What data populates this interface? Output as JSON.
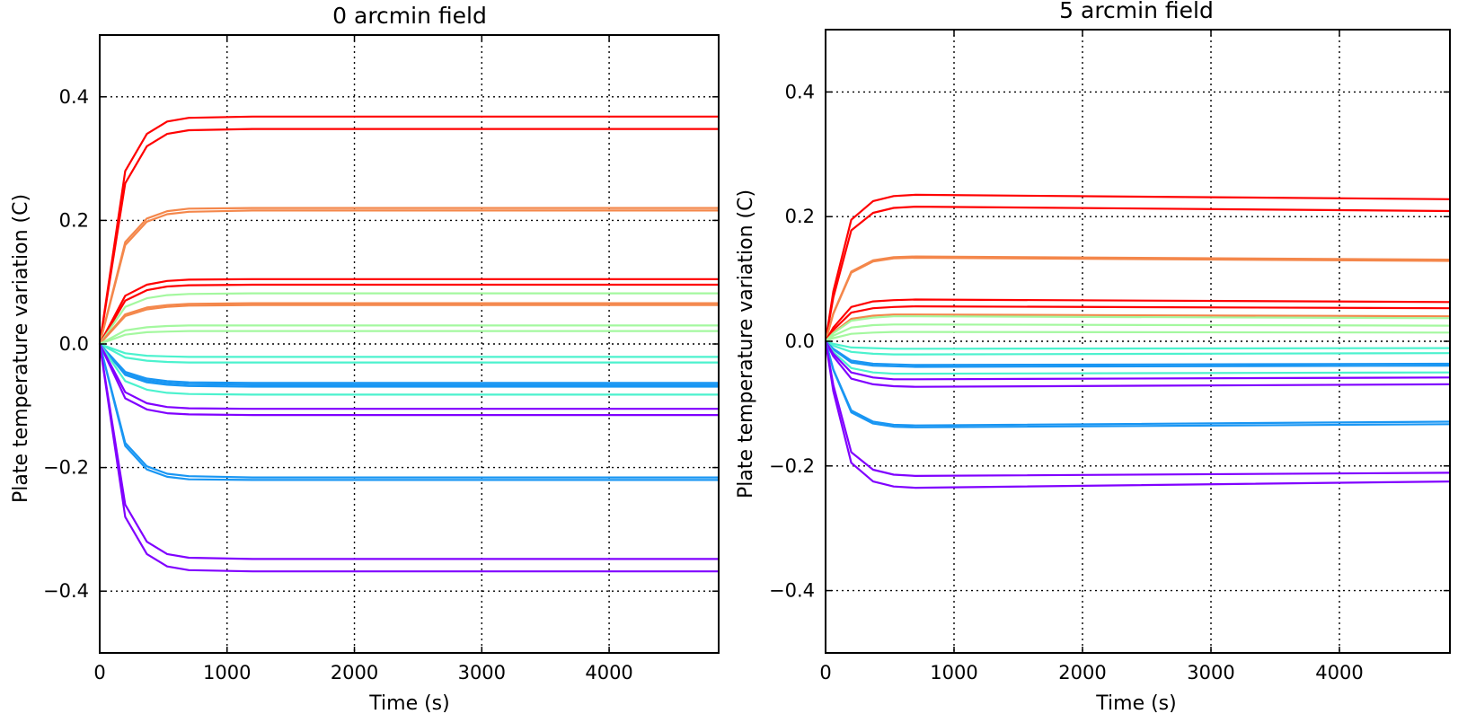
{
  "chart_data": [
    {
      "type": "line",
      "title": "0 arcmin field",
      "xlabel": "Time (s)",
      "ylabel": "Plate temperature variation (C)",
      "xlim": [
        0,
        4860
      ],
      "ylim": [
        -0.5,
        0.5
      ],
      "xticks": [
        0,
        1000,
        2000,
        3000,
        4000
      ],
      "xtick_labels": [
        "0",
        "1000",
        "2000",
        "3000",
        "4000"
      ],
      "yticks": [
        -0.4,
        -0.2,
        0.0,
        0.2,
        0.4
      ],
      "ytick_labels": [
        "−0.4",
        "−0.2",
        "0.0",
        "0.2",
        "0.4"
      ],
      "grid": true,
      "series": [
        {
          "color": "#ff0000",
          "x": [
            0,
            200,
            370,
            530,
            700,
            1200,
            4860
          ],
          "y": [
            0,
            0.28,
            0.34,
            0.36,
            0.366,
            0.368,
            0.368
          ]
        },
        {
          "color": "#ff0000",
          "x": [
            0,
            200,
            370,
            530,
            700,
            1200,
            4860
          ],
          "y": [
            0,
            0.26,
            0.32,
            0.34,
            0.346,
            0.348,
            0.348
          ]
        },
        {
          "color": "#f4874b",
          "x": [
            0,
            200,
            370,
            530,
            700,
            1200,
            4860
          ],
          "y": [
            0,
            0.165,
            0.203,
            0.215,
            0.219,
            0.22,
            0.22
          ]
        },
        {
          "color": "#f4874b",
          "x": [
            0,
            200,
            370,
            530,
            700,
            1200,
            4860
          ],
          "y": [
            0,
            0.16,
            0.198,
            0.21,
            0.214,
            0.216,
            0.216
          ]
        },
        {
          "color": "#ff0000",
          "x": [
            0,
            200,
            370,
            530,
            700,
            1200,
            4860
          ],
          "y": [
            0,
            0.078,
            0.096,
            0.102,
            0.104,
            0.105,
            0.105
          ]
        },
        {
          "color": "#ff0000",
          "x": [
            0,
            200,
            370,
            530,
            700,
            1200,
            4860
          ],
          "y": [
            0,
            0.07,
            0.087,
            0.093,
            0.095,
            0.096,
            0.096
          ]
        },
        {
          "color": "#a4f89f",
          "x": [
            0,
            200,
            370,
            530,
            700,
            1200,
            4860
          ],
          "y": [
            0,
            0.06,
            0.074,
            0.079,
            0.081,
            0.082,
            0.082
          ]
        },
        {
          "color": "#f4874b",
          "x": [
            0,
            200,
            370,
            530,
            700,
            1200,
            4860
          ],
          "y": [
            0,
            0.048,
            0.059,
            0.063,
            0.065,
            0.066,
            0.066
          ]
        },
        {
          "color": "#f4874b",
          "x": [
            0,
            200,
            370,
            530,
            700,
            1200,
            4860
          ],
          "y": [
            0,
            0.045,
            0.056,
            0.06,
            0.062,
            0.063,
            0.063
          ]
        },
        {
          "color": "#a4f89f",
          "x": [
            0,
            200,
            370,
            530,
            700,
            1200,
            4860
          ],
          "y": [
            0,
            0.022,
            0.027,
            0.029,
            0.03,
            0.03,
            0.03
          ]
        },
        {
          "color": "#a4f89f",
          "x": [
            0,
            200,
            370,
            530,
            700,
            1200,
            4860
          ],
          "y": [
            0,
            0.015,
            0.019,
            0.02,
            0.021,
            0.021,
            0.021
          ]
        },
        {
          "color": "#4cf2ce",
          "x": [
            0,
            200,
            370,
            530,
            700,
            1200,
            4860
          ],
          "y": [
            0,
            -0.015,
            -0.019,
            -0.02,
            -0.021,
            -0.021,
            -0.021
          ]
        },
        {
          "color": "#4cf2ce",
          "x": [
            0,
            200,
            370,
            530,
            700,
            1200,
            4860
          ],
          "y": [
            0,
            -0.022,
            -0.027,
            -0.029,
            -0.03,
            -0.03,
            -0.03
          ]
        },
        {
          "color": "#1996f3",
          "x": [
            0,
            200,
            370,
            530,
            700,
            1200,
            4860
          ],
          "y": [
            0,
            -0.045,
            -0.056,
            -0.06,
            -0.062,
            -0.063,
            -0.063
          ]
        },
        {
          "color": "#1996f3",
          "x": [
            0,
            200,
            370,
            530,
            700,
            1200,
            4860
          ],
          "y": [
            0,
            -0.048,
            -0.059,
            -0.063,
            -0.065,
            -0.066,
            -0.066
          ]
        },
        {
          "color": "#1996f3",
          "x": [
            0,
            200,
            370,
            530,
            700,
            1200,
            4860
          ],
          "y": [
            0,
            -0.05,
            -0.062,
            -0.066,
            -0.068,
            -0.069,
            -0.069
          ]
        },
        {
          "color": "#4cf2ce",
          "x": [
            0,
            200,
            370,
            530,
            700,
            1200,
            4860
          ],
          "y": [
            0,
            -0.06,
            -0.074,
            -0.079,
            -0.081,
            -0.082,
            -0.082
          ]
        },
        {
          "color": "#8000ff",
          "x": [
            0,
            200,
            370,
            530,
            700,
            1200,
            4860
          ],
          "y": [
            0,
            -0.078,
            -0.096,
            -0.102,
            -0.104,
            -0.105,
            -0.105
          ]
        },
        {
          "color": "#8000ff",
          "x": [
            0,
            200,
            370,
            530,
            700,
            1200,
            4860
          ],
          "y": [
            0,
            -0.088,
            -0.106,
            -0.112,
            -0.114,
            -0.115,
            -0.115
          ]
        },
        {
          "color": "#1996f3",
          "x": [
            0,
            200,
            370,
            530,
            700,
            1200,
            4860
          ],
          "y": [
            0,
            -0.16,
            -0.198,
            -0.21,
            -0.214,
            -0.216,
            -0.216
          ]
        },
        {
          "color": "#1996f3",
          "x": [
            0,
            200,
            370,
            530,
            700,
            1200,
            4860
          ],
          "y": [
            0,
            -0.165,
            -0.203,
            -0.215,
            -0.219,
            -0.22,
            -0.22
          ]
        },
        {
          "color": "#8000ff",
          "x": [
            0,
            200,
            370,
            530,
            700,
            1200,
            4860
          ],
          "y": [
            0,
            -0.26,
            -0.32,
            -0.34,
            -0.346,
            -0.348,
            -0.348
          ]
        },
        {
          "color": "#8000ff",
          "x": [
            0,
            200,
            370,
            530,
            700,
            1200,
            4860
          ],
          "y": [
            0,
            -0.28,
            -0.34,
            -0.36,
            -0.366,
            -0.368,
            -0.368
          ]
        }
      ]
    },
    {
      "type": "line",
      "title": "5 arcmin field",
      "xlabel": "Time (s)",
      "ylabel": "Plate temperature variation (C)",
      "xlim": [
        0,
        4860
      ],
      "ylim": [
        -0.5,
        0.5
      ],
      "xticks": [
        0,
        1000,
        2000,
        3000,
        4000
      ],
      "xtick_labels": [
        "0",
        "1000",
        "2000",
        "3000",
        "4000"
      ],
      "yticks": [
        -0.4,
        -0.2,
        0.0,
        0.2,
        0.4
      ],
      "ytick_labels": [
        "−0.4",
        "−0.2",
        "0.0",
        "0.2",
        "0.4"
      ],
      "grid": true,
      "series": [
        {
          "color": "#ff0000",
          "x": [
            0,
            60,
            200,
            370,
            530,
            700,
            4860
          ],
          "y": [
            0,
            0.08,
            0.195,
            0.225,
            0.233,
            0.235,
            0.228
          ]
        },
        {
          "color": "#ff0000",
          "x": [
            0,
            60,
            200,
            370,
            530,
            700,
            4860
          ],
          "y": [
            0,
            0.07,
            0.178,
            0.206,
            0.214,
            0.216,
            0.209
          ]
        },
        {
          "color": "#f4874b",
          "x": [
            0,
            60,
            200,
            370,
            530,
            700,
            4860
          ],
          "y": [
            0,
            0.045,
            0.112,
            0.13,
            0.135,
            0.136,
            0.131
          ]
        },
        {
          "color": "#f4874b",
          "x": [
            0,
            60,
            200,
            370,
            530,
            700,
            4860
          ],
          "y": [
            0,
            0.044,
            0.11,
            0.128,
            0.133,
            0.134,
            0.129
          ]
        },
        {
          "color": "#ff0000",
          "x": [
            0,
            60,
            200,
            370,
            530,
            700,
            4860
          ],
          "y": [
            0,
            0.022,
            0.055,
            0.064,
            0.066,
            0.067,
            0.063
          ]
        },
        {
          "color": "#ff0000",
          "x": [
            0,
            60,
            200,
            370,
            530,
            700,
            4860
          ],
          "y": [
            0,
            0.018,
            0.046,
            0.053,
            0.055,
            0.056,
            0.053
          ]
        },
        {
          "color": "#f4874b",
          "x": [
            0,
            60,
            200,
            370,
            530,
            700,
            4860
          ],
          "y": [
            0,
            0.014,
            0.036,
            0.041,
            0.043,
            0.043,
            0.04
          ]
        },
        {
          "color": "#a4f89f",
          "x": [
            0,
            60,
            200,
            370,
            530,
            700,
            4860
          ],
          "y": [
            0,
            0.013,
            0.033,
            0.038,
            0.04,
            0.04,
            0.037
          ]
        },
        {
          "color": "#a4f89f",
          "x": [
            0,
            60,
            200,
            370,
            530,
            700,
            4860
          ],
          "y": [
            0,
            0.009,
            0.022,
            0.026,
            0.027,
            0.027,
            0.025
          ]
        },
        {
          "color": "#a4f89f",
          "x": [
            0,
            60,
            200,
            370,
            530,
            700,
            4860
          ],
          "y": [
            0,
            0.005,
            0.012,
            0.014,
            0.015,
            0.015,
            0.014
          ]
        },
        {
          "color": "#4cf2ce",
          "x": [
            0,
            60,
            200,
            370,
            530,
            700,
            4860
          ],
          "y": [
            0,
            -0.004,
            -0.01,
            -0.011,
            -0.012,
            -0.012,
            -0.011
          ]
        },
        {
          "color": "#4cf2ce",
          "x": [
            0,
            60,
            200,
            370,
            530,
            700,
            4860
          ],
          "y": [
            0,
            -0.007,
            -0.017,
            -0.02,
            -0.021,
            -0.021,
            -0.019
          ]
        },
        {
          "color": "#1996f3",
          "x": [
            0,
            60,
            200,
            370,
            530,
            700,
            4860
          ],
          "y": [
            0,
            -0.012,
            -0.031,
            -0.036,
            -0.037,
            -0.038,
            -0.036
          ]
        },
        {
          "color": "#1996f3",
          "x": [
            0,
            60,
            200,
            370,
            530,
            700,
            4860
          ],
          "y": [
            0,
            -0.013,
            -0.034,
            -0.039,
            -0.04,
            -0.041,
            -0.039
          ]
        },
        {
          "color": "#4cf2ce",
          "x": [
            0,
            60,
            200,
            370,
            530,
            700,
            4860
          ],
          "y": [
            0,
            -0.017,
            -0.043,
            -0.05,
            -0.052,
            -0.052,
            -0.05
          ]
        },
        {
          "color": "#8000ff",
          "x": [
            0,
            60,
            200,
            370,
            530,
            700,
            4860
          ],
          "y": [
            0,
            -0.02,
            -0.05,
            -0.058,
            -0.061,
            -0.061,
            -0.058
          ]
        },
        {
          "color": "#8000ff",
          "x": [
            0,
            60,
            200,
            370,
            530,
            700,
            4860
          ],
          "y": [
            0,
            -0.024,
            -0.06,
            -0.069,
            -0.072,
            -0.073,
            -0.069
          ]
        },
        {
          "color": "#1996f3",
          "x": [
            0,
            60,
            200,
            370,
            530,
            700,
            4860
          ],
          "y": [
            0,
            -0.045,
            -0.111,
            -0.129,
            -0.134,
            -0.135,
            -0.129
          ]
        },
        {
          "color": "#1996f3",
          "x": [
            0,
            60,
            200,
            370,
            530,
            700,
            4860
          ],
          "y": [
            0,
            -0.046,
            -0.114,
            -0.132,
            -0.137,
            -0.138,
            -0.133
          ]
        },
        {
          "color": "#8000ff",
          "x": [
            0,
            60,
            200,
            370,
            530,
            700,
            4860
          ],
          "y": [
            0,
            -0.07,
            -0.178,
            -0.206,
            -0.214,
            -0.216,
            -0.211
          ]
        },
        {
          "color": "#8000ff",
          "x": [
            0,
            60,
            200,
            370,
            530,
            700,
            4860
          ],
          "y": [
            0,
            -0.08,
            -0.195,
            -0.225,
            -0.233,
            -0.235,
            -0.225
          ]
        }
      ]
    }
  ]
}
